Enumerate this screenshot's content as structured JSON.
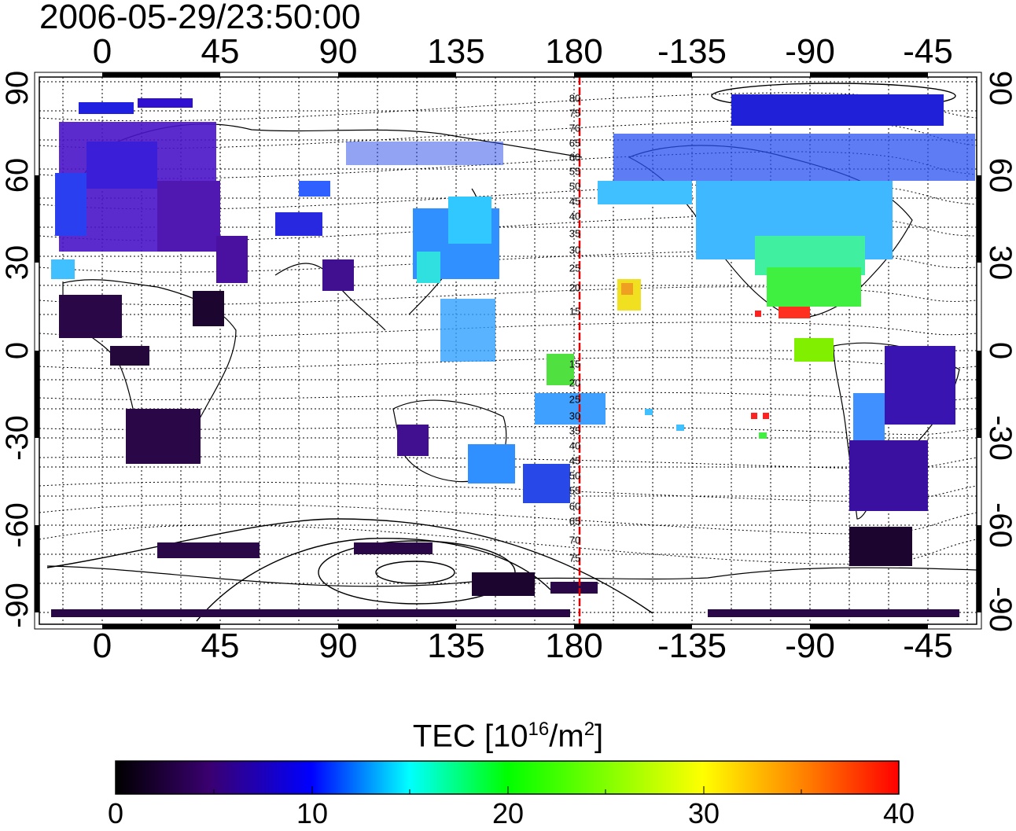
{
  "timestamp": "2006-05-29/23:50:00",
  "lon_ticks_top": [
    "0",
    "45",
    "90",
    "135",
    "180",
    "-135",
    "-90",
    "-45"
  ],
  "lon_ticks_bottom": [
    "0",
    "45",
    "90",
    "135",
    "180",
    "-135",
    "-90",
    "-45"
  ],
  "lat_ticks_left": [
    "90",
    "60",
    "30",
    "0",
    "-30",
    "-60",
    "-90"
  ],
  "lat_ticks_right": [
    "90",
    "60",
    "30",
    "0",
    "-30",
    "-60",
    "-90"
  ],
  "magnetic_lat_labels": [
    "80",
    "75",
    "70",
    "65",
    "60",
    "55",
    "50",
    "45",
    "40",
    "35",
    "30",
    "25",
    "20",
    "15",
    "15",
    "20",
    "25",
    "30",
    "35",
    "40",
    "45",
    "50",
    "55",
    "60",
    "65",
    "70",
    "75"
  ],
  "meridian_longitude": 182,
  "colorbar": {
    "title_main": "TEC  [10",
    "title_exp": "16",
    "title_mid": "/m",
    "title_exp2": "2",
    "title_end": "]",
    "ticks": [
      "0",
      "10",
      "20",
      "30",
      "40"
    ],
    "range": [
      0,
      40
    ],
    "stops": [
      "#000000",
      "#3a0070",
      "#0000ff",
      "#00ffff",
      "#00ff00",
      "#ffff00",
      "#ff8000",
      "#ff0000"
    ]
  }
}
